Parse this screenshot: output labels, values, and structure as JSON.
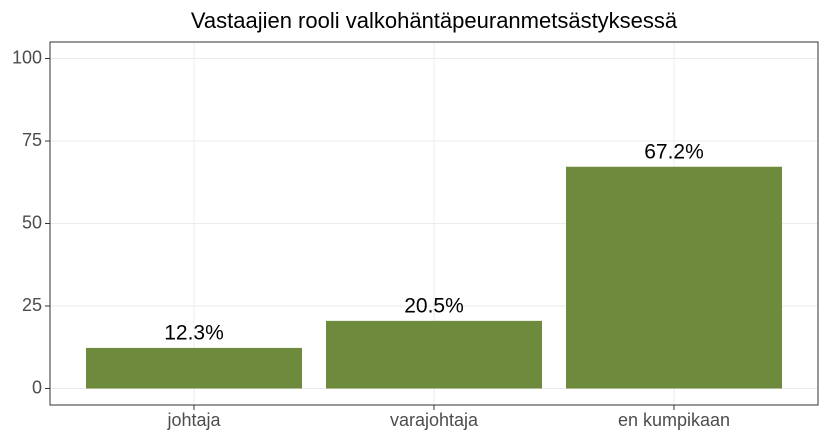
{
  "chart_data": {
    "type": "bar",
    "title": "Vastaajien rooli valkohäntäpeuranmetsästyksessä",
    "categories": [
      "johtaja",
      "varajohtaja",
      "en kumpikaan"
    ],
    "values": [
      12.3,
      20.5,
      67.2
    ],
    "value_labels": [
      "12.3%",
      "20.5%",
      "67.2%"
    ],
    "color": "#6e8b3d",
    "ylim": [
      -5,
      105
    ],
    "yticks": [
      0,
      25,
      50,
      75,
      100
    ],
    "grid": true
  }
}
